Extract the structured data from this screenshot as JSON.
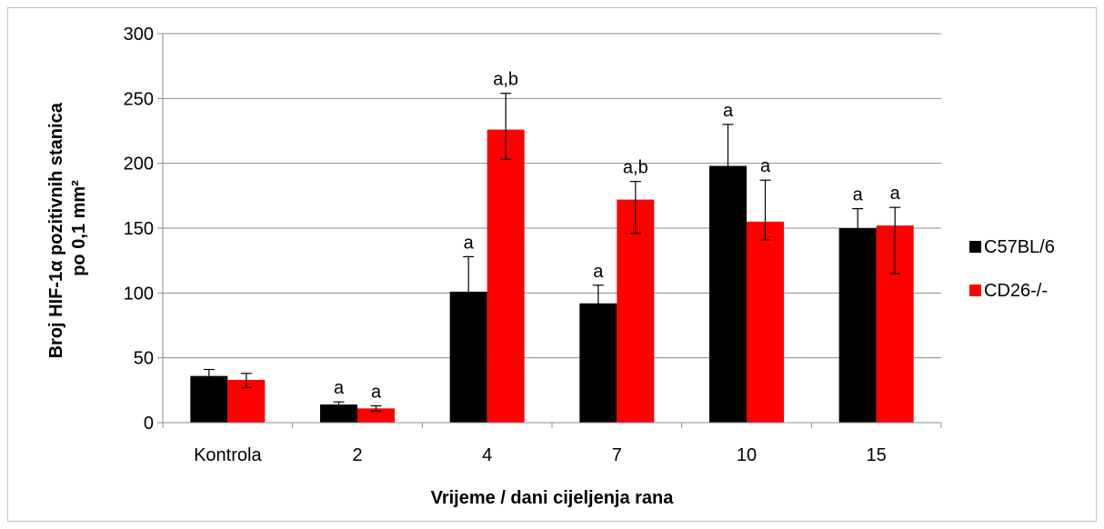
{
  "chart_data": {
    "type": "bar",
    "title": "",
    "xlabel": "Vrijeme / dani cijeljenja rana",
    "ylabel_line1": "Broj HIF-1α pozitivnih stanica",
    "ylabel_line2": "po 0,1 mm²",
    "ylim": [
      0,
      300
    ],
    "yticks": [
      0,
      50,
      100,
      150,
      200,
      250,
      300
    ],
    "ytick_labels": [
      "0",
      "50",
      "100",
      "150",
      "200",
      "250",
      "300"
    ],
    "grid": true,
    "legend_position": "right",
    "categories": [
      "Kontrola",
      "2",
      "4",
      "7",
      "10",
      "15"
    ],
    "series": [
      {
        "name": "C57BL/6",
        "color": "#000000",
        "values": [
          36,
          14,
          101,
          92,
          198,
          150
        ],
        "err_low": [
          5,
          3,
          28,
          12,
          40,
          15
        ],
        "err_high": [
          5,
          2,
          27,
          14,
          32,
          15
        ],
        "labels": [
          "",
          "a",
          "a",
          "a",
          "a",
          "a"
        ]
      },
      {
        "name": "CD26-/-",
        "color": "#ff0000",
        "values": [
          33,
          11,
          226,
          172,
          155,
          152
        ],
        "err_low": [
          6,
          2,
          23,
          26,
          14,
          37
        ],
        "err_high": [
          5,
          2,
          28,
          14,
          32,
          14
        ],
        "labels": [
          "",
          "a",
          "a,b",
          "a,b",
          "a",
          "a"
        ]
      }
    ]
  }
}
